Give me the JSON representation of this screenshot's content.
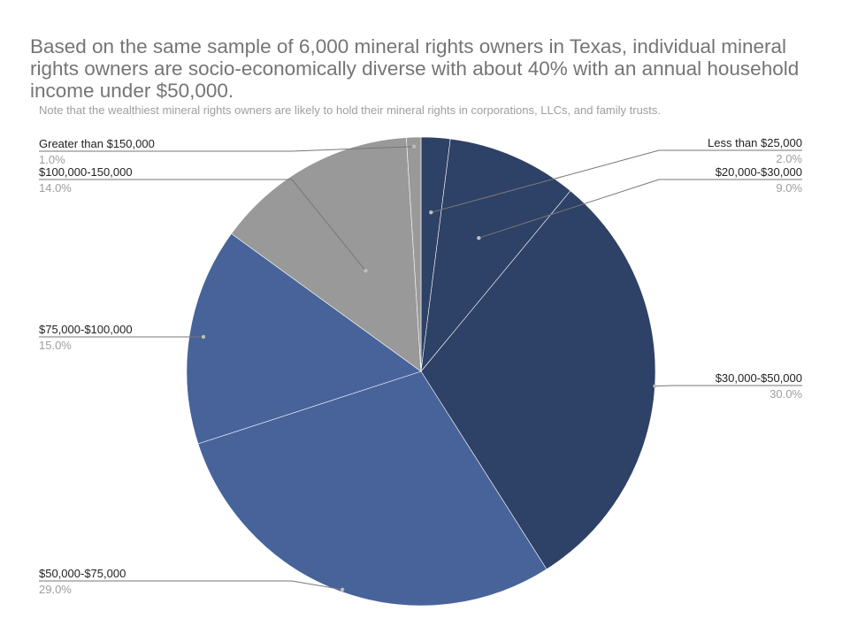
{
  "title": "Based on the same sample of 6,000 mineral rights owners in Texas, individual mineral rights owners are socio-economically diverse with about 40% with an annual household income under $50,000.",
  "subtitle": "Note that the wealthiest mineral rights owners are likely to hold their mineral rights in corporations, LLCs, and family trusts.",
  "chart_data": {
    "type": "pie",
    "title": "Based on the same sample of 6,000 mineral rights owners in Texas, individual mineral rights owners are socio-economically diverse with about 40% with an annual household income under $50,000.",
    "subtitle": "Note that the wealthiest mineral rights owners are likely to hold their mineral rights in corporations, LLCs, and family trusts.",
    "start": "12 o'clock",
    "direction": "clockwise",
    "slices": [
      {
        "label": "Less than $25,000",
        "value": 2.0,
        "pct_label": "2.0%",
        "color": "#2e4166",
        "label_side": "right"
      },
      {
        "label": "$20,000-$30,000",
        "value": 9.0,
        "pct_label": "9.0%",
        "color": "#2e4166",
        "label_side": "right"
      },
      {
        "label": "$30,000-$50,000",
        "value": 30.0,
        "pct_label": "30.0%",
        "color": "#2e4166",
        "label_side": "right"
      },
      {
        "label": "$50,000-$75,000",
        "value": 29.0,
        "pct_label": "29.0%",
        "color": "#47639a",
        "label_side": "left"
      },
      {
        "label": "$75,000-$100,000",
        "value": 15.0,
        "pct_label": "15.0%",
        "color": "#47639a",
        "label_side": "left"
      },
      {
        "label": "$100,000-150,000",
        "value": 14.0,
        "pct_label": "14.0%",
        "color": "#999999",
        "label_side": "left"
      },
      {
        "label": "Greater than $150,000",
        "value": 1.0,
        "pct_label": "1.0%",
        "color": "#999999",
        "label_side": "left"
      }
    ]
  }
}
